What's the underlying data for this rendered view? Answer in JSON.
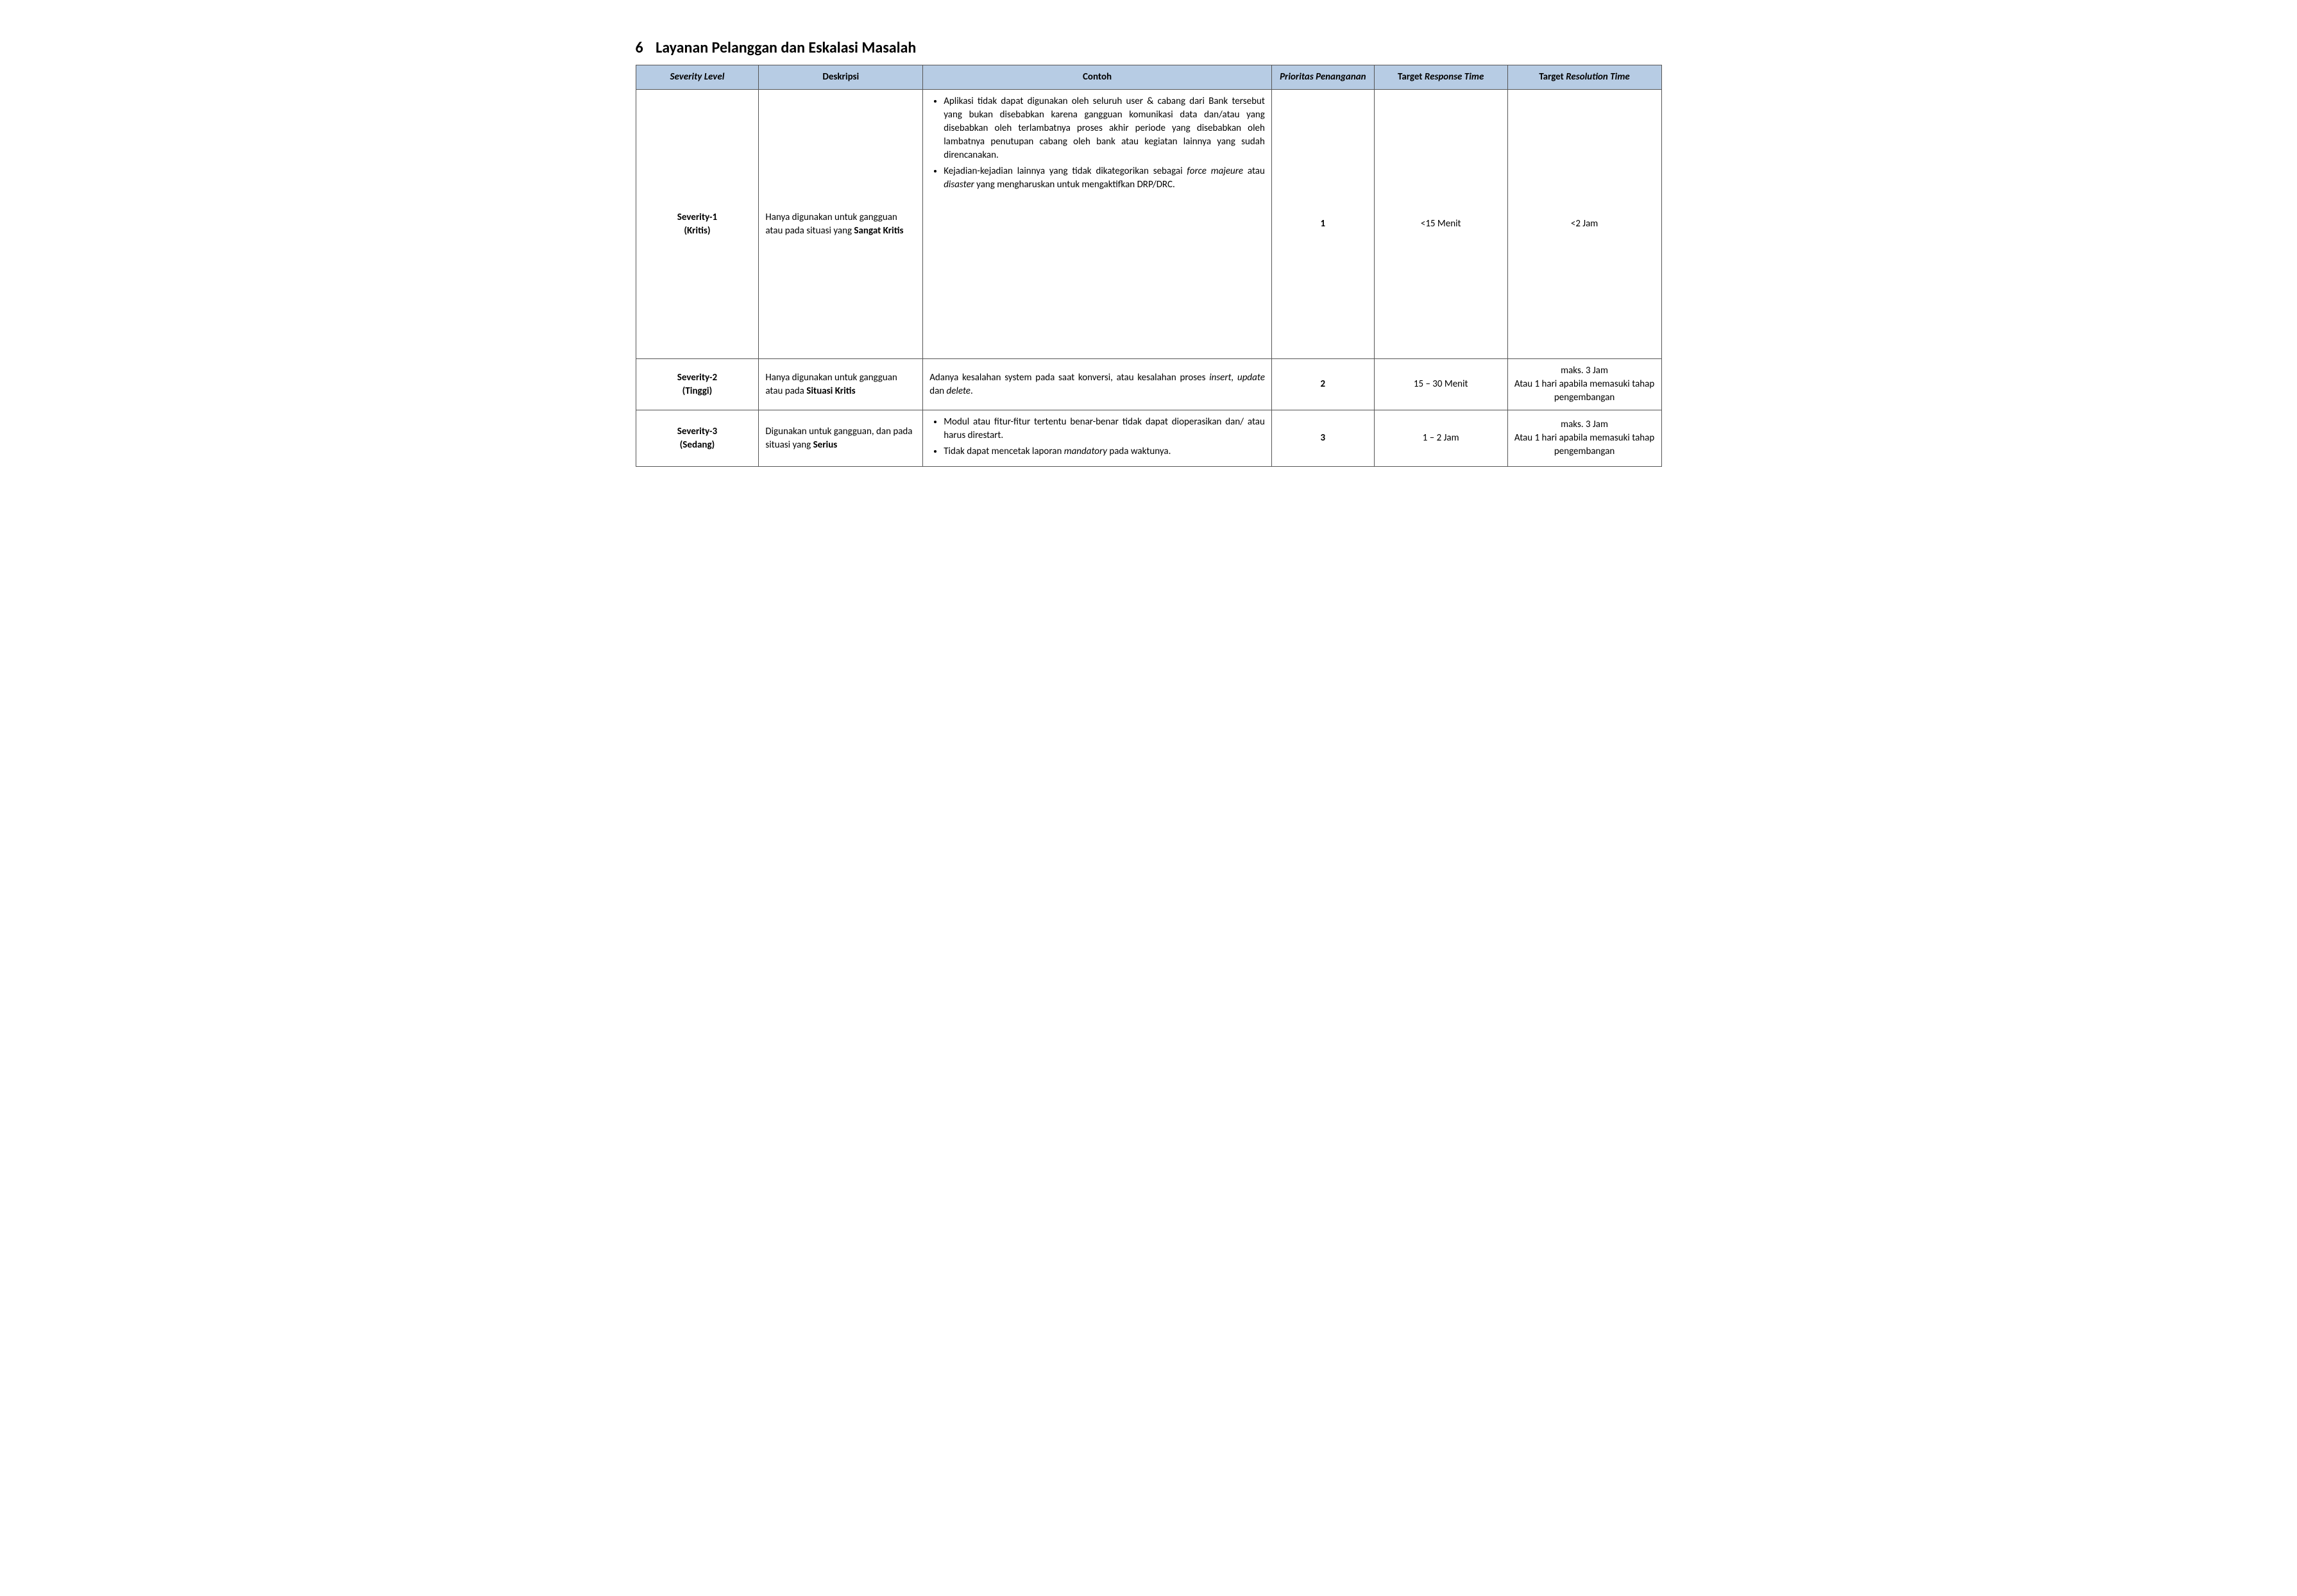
{
  "heading": {
    "number": "6",
    "title": "Layanan Pelanggan dan Eskalasi Masalah"
  },
  "table": {
    "header_bg": "#b7cce4",
    "border_color": "#555555",
    "columns": [
      {
        "label": "Severity Level",
        "italic": true,
        "width_pct": 12
      },
      {
        "label": "Deskripsi",
        "italic": false,
        "width_pct": 16
      },
      {
        "label": "Contoh",
        "italic": false,
        "width_pct": 34
      },
      {
        "label": "Prioritas Penanganan",
        "italic": true,
        "width_pct": 10
      },
      {
        "label": "Target Response Time",
        "italic_part": "Response Time",
        "prefix": "Target ",
        "width_pct": 13
      },
      {
        "label": "Target Resolution Time",
        "italic_part": "Resolution Time",
        "prefix": "Target ",
        "width_pct": 15
      }
    ],
    "rows": [
      {
        "level_line1": "Severity-1",
        "level_line2": "(Kritis)",
        "desc_prefix": "Hanya digunakan untuk gangguan atau pada situasi yang ",
        "desc_bold": "Sangat Kritis",
        "example_type": "bullets",
        "example_bullets": [
          {
            "pre": "Aplikasi tidak dapat digunakan oleh seluruh user & cabang dari Bank tersebut yang bukan disebabkan karena gangguan komunikasi data dan/atau yang disebabkan oleh terlambatnya proses akhir periode yang disebabkan oleh lambatnya penutupan cabang oleh bank atau kegiatan lainnya yang sudah direncanakan."
          },
          {
            "pre": "Kejadian-kejadian lainnya yang tidak dikategorikan sebagai ",
            "italic1": "force majeure",
            "mid": " atau ",
            "italic2": "disaster",
            "post": " yang mengharuskan untuk mengaktifkan DRP/DRC."
          }
        ],
        "priority": "1",
        "response": "<15 Menit",
        "resolution": "<2 Jam",
        "tall": true
      },
      {
        "level_line1": "Severity-2",
        "level_line2": "(Tinggi)",
        "desc_prefix": "Hanya digunakan untuk gangguan atau pada ",
        "desc_bold": "Situasi Kritis",
        "example_type": "text",
        "example_pre": "Adanya kesalahan system pada saat konversi, atau kesalahan proses ",
        "example_italic1": "insert, update",
        "example_mid": " dan ",
        "example_italic2": "delete",
        "example_post": ".",
        "priority": "2",
        "response": "15 – 30 Menit",
        "resolution": "maks. 3 Jam\nAtau 1 hari apabila memasuki tahap pengembangan"
      },
      {
        "level_line1": "Severity-3",
        "level_line2": "(Sedang)",
        "desc_prefix": "Digunakan untuk gangguan, dan pada situasi yang ",
        "desc_bold": "Serius",
        "example_type": "bullets",
        "example_bullets": [
          {
            "pre": "Modul atau fitur-fitur tertentu benar-benar tidak dapat dioperasikan dan/ atau harus direstart."
          },
          {
            "pre": "Tidak dapat mencetak laporan ",
            "italic1": "mandatory",
            "post": " pada waktunya."
          }
        ],
        "priority": "3",
        "response": "1 – 2 Jam",
        "resolution": "maks. 3 Jam\nAtau 1 hari apabila memasuki tahap pengembangan"
      }
    ]
  }
}
